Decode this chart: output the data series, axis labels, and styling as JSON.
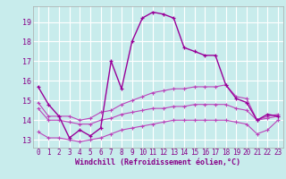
{
  "xlabel": "Windchill (Refroidissement éolien,°C)",
  "bg_color": "#c8ecec",
  "grid_color": "#ffffff",
  "line_color1": "#990099",
  "line_color2": "#bb44bb",
  "xlim": [
    -0.5,
    23.5
  ],
  "ylim": [
    12.6,
    19.8
  ],
  "xticks": [
    0,
    1,
    2,
    3,
    4,
    5,
    6,
    7,
    8,
    9,
    10,
    11,
    12,
    13,
    14,
    15,
    16,
    17,
    18,
    19,
    20,
    21,
    22,
    23
  ],
  "yticks": [
    13,
    14,
    15,
    16,
    17,
    18,
    19
  ],
  "curve1_x": [
    0,
    1,
    2,
    3,
    4,
    5,
    6,
    7,
    8,
    9,
    10,
    11,
    12,
    13,
    14,
    15,
    16,
    17,
    18,
    19,
    20,
    21,
    22,
    23
  ],
  "curve1_y": [
    15.7,
    14.8,
    14.2,
    13.1,
    13.5,
    13.2,
    13.6,
    17.0,
    15.6,
    18.0,
    19.2,
    19.5,
    19.4,
    19.2,
    17.7,
    17.5,
    17.3,
    17.3,
    15.8,
    15.1,
    14.9,
    14.0,
    14.3,
    14.2
  ],
  "curve2_x": [
    0,
    1,
    2,
    3,
    4,
    5,
    6,
    7,
    8,
    9,
    10,
    11,
    12,
    13,
    14,
    15,
    16,
    17,
    18,
    19,
    20,
    21,
    22,
    23
  ],
  "curve2_y": [
    14.9,
    14.2,
    14.2,
    14.2,
    14.0,
    14.1,
    14.4,
    14.5,
    14.8,
    15.0,
    15.2,
    15.4,
    15.5,
    15.6,
    15.6,
    15.7,
    15.7,
    15.7,
    15.8,
    15.2,
    15.1,
    14.0,
    14.2,
    14.3
  ],
  "curve3_x": [
    0,
    1,
    2,
    3,
    4,
    5,
    6,
    7,
    8,
    9,
    10,
    11,
    12,
    13,
    14,
    15,
    16,
    17,
    18,
    19,
    20,
    21,
    22,
    23
  ],
  "curve3_y": [
    14.6,
    14.0,
    14.0,
    13.9,
    13.8,
    13.8,
    14.0,
    14.1,
    14.3,
    14.4,
    14.5,
    14.6,
    14.6,
    14.7,
    14.7,
    14.8,
    14.8,
    14.8,
    14.8,
    14.6,
    14.5,
    14.0,
    14.1,
    14.2
  ],
  "curve4_x": [
    0,
    1,
    2,
    3,
    4,
    5,
    6,
    7,
    8,
    9,
    10,
    11,
    12,
    13,
    14,
    15,
    16,
    17,
    18,
    19,
    20,
    21,
    22,
    23
  ],
  "curve4_y": [
    13.4,
    13.1,
    13.1,
    13.0,
    12.9,
    13.0,
    13.1,
    13.3,
    13.5,
    13.6,
    13.7,
    13.8,
    13.9,
    14.0,
    14.0,
    14.0,
    14.0,
    14.0,
    14.0,
    13.9,
    13.8,
    13.3,
    13.5,
    14.0
  ]
}
